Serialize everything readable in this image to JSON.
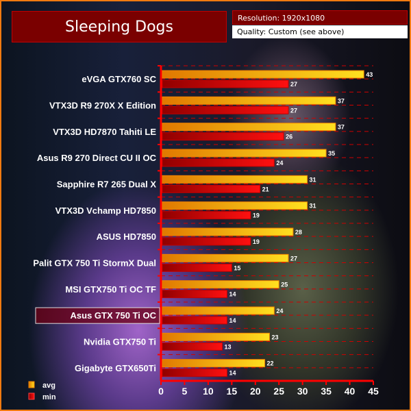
{
  "header": {
    "title": "Sleeping Dogs",
    "resolution": "Resolution: 1920x1080",
    "quality": "Quality: Custom (see above)"
  },
  "colors": {
    "avg": "#f5b800",
    "min": "#d00000",
    "axis": "#ff0000",
    "highlight": "#7a0010"
  },
  "chart_data": {
    "type": "bar",
    "orientation": "horizontal",
    "title": "Sleeping Dogs",
    "categories": [
      "eVGA GTX760 SC",
      "VTX3D R9 270X X Edition",
      "VTX3D HD7870 Tahiti LE",
      "Asus R9 270 Direct CU II OC",
      "Sapphire R7 265 Dual X",
      "VTX3D Vchamp HD7850",
      "ASUS HD7850",
      "Palit GTX 750 Ti StormX Dual",
      "MSI GTX750 Ti OC TF",
      "Asus GTX 750 Ti OC",
      "Nvidia GTX750 Ti",
      "Gigabyte GTX650Ti"
    ],
    "highlighted": "Asus GTX 750 Ti OC",
    "series": [
      {
        "name": "avg",
        "values": [
          43,
          37,
          37,
          35,
          31,
          31,
          28,
          27,
          25,
          24,
          23,
          22
        ]
      },
      {
        "name": "min",
        "values": [
          27,
          27,
          26,
          24,
          21,
          19,
          19,
          15,
          14,
          14,
          13,
          14
        ]
      }
    ],
    "xlim": [
      0,
      45
    ],
    "xticks": [
      "0",
      "5",
      "10",
      "15",
      "20",
      "25",
      "30",
      "35",
      "40",
      "45"
    ],
    "legend": "bottom-left",
    "grid": "dashed"
  }
}
